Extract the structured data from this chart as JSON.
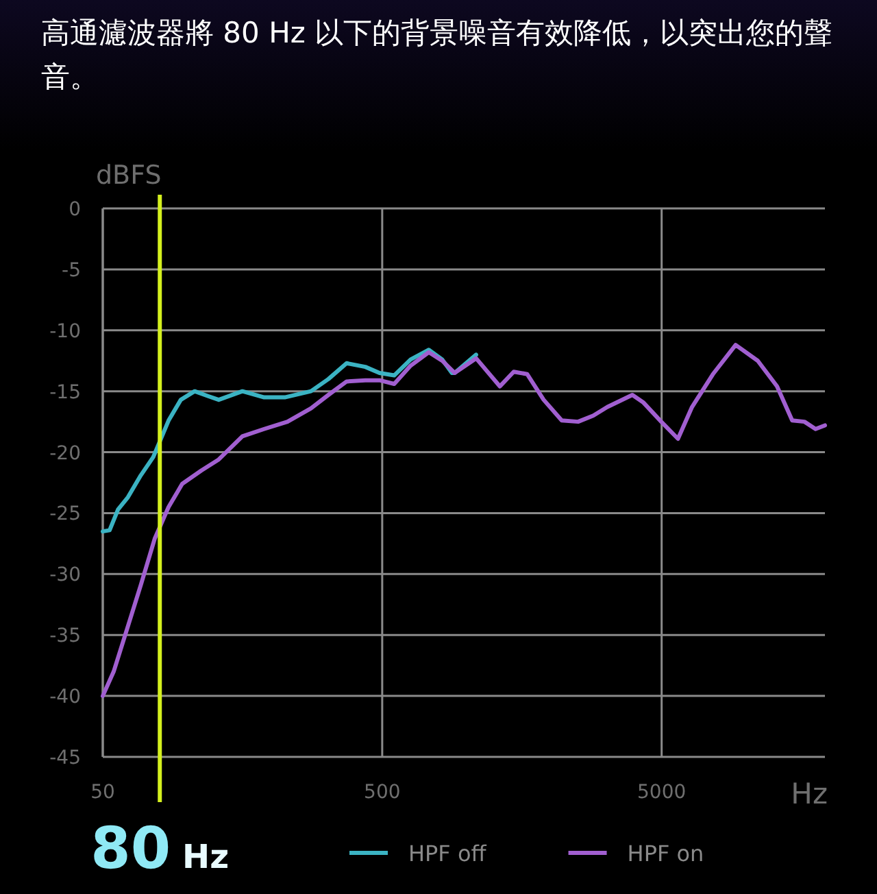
{
  "chart_data": {
    "type": "line",
    "title": "高通濾波器將 80 Hz 以下的背景噪音有效降低，以突出您的聲音。",
    "xlabel": "Hz",
    "ylabel": "dBFS",
    "log": "x",
    "xlim": [
      50,
      19200
    ],
    "xticks": [
      50,
      500,
      5000
    ],
    "ylim": [
      -45,
      0
    ],
    "yticks": [
      0,
      -5,
      -10,
      -15,
      -20,
      -25,
      -30,
      -35,
      -40,
      -45
    ],
    "grid": true,
    "legend": "bottom",
    "line_style": "solid",
    "marker": "none",
    "ref_lines": [
      {
        "axis": "x",
        "value": 80,
        "label": "80 Hz",
        "color": "#d4f01e"
      }
    ],
    "series": [
      {
        "name": "HPF off",
        "color": "#3bb3c3",
        "x": [
          50,
          52.9,
          56.7,
          61.5,
          68.4,
          75.8,
          86,
          95.1,
          106.6,
          119,
          130,
          158,
          189,
          224,
          278,
          321,
          373,
          435,
          489,
          552,
          632,
          734,
          820,
          888,
          908,
          1084
        ],
        "values": [
          -26.5,
          -26.4,
          -24.7,
          -23.7,
          -21.9,
          -20.4,
          -17.4,
          -15.7,
          -15,
          -15.4,
          -15.7,
          -15,
          -15.5,
          -15.5,
          -15,
          -14,
          -12.7,
          -13,
          -13.5,
          -13.7,
          -12.4,
          -11.6,
          -12.4,
          -13.5,
          -13.5,
          -12
        ]
      },
      {
        "name": "HPF on",
        "color": "#a15fd0",
        "x": [
          50,
          54.7,
          60.9,
          68.4,
          76.7,
          86,
          96.2,
          112.7,
          130,
          158,
          189,
          229,
          278,
          321,
          373,
          435,
          489,
          552,
          632,
          734,
          820,
          908,
          1084,
          1318,
          1478,
          1652,
          1891,
          2195,
          2511,
          2846,
          3192,
          3928,
          4290,
          4984,
          5720,
          6420,
          7630,
          9200,
          11040,
          12940,
          14660,
          16220,
          17770,
          19200
        ],
        "values": [
          -40,
          -38,
          -34.6,
          -30.9,
          -27.1,
          -24.5,
          -22.6,
          -21.5,
          -20.6,
          -18.7,
          -18.1,
          -17.5,
          -16.4,
          -15.3,
          -14.2,
          -14.1,
          -14.1,
          -14.4,
          -12.9,
          -11.8,
          -12.5,
          -13.5,
          -12.3,
          -14.6,
          -13.4,
          -13.6,
          -15.7,
          -17.4,
          -17.5,
          -17,
          -16.3,
          -15.3,
          -15.9,
          -17.5,
          -18.9,
          -16.3,
          -13.6,
          -11.2,
          -12.5,
          -14.6,
          -17.4,
          -17.5,
          -18.1,
          -17.8
        ]
      }
    ]
  }
}
